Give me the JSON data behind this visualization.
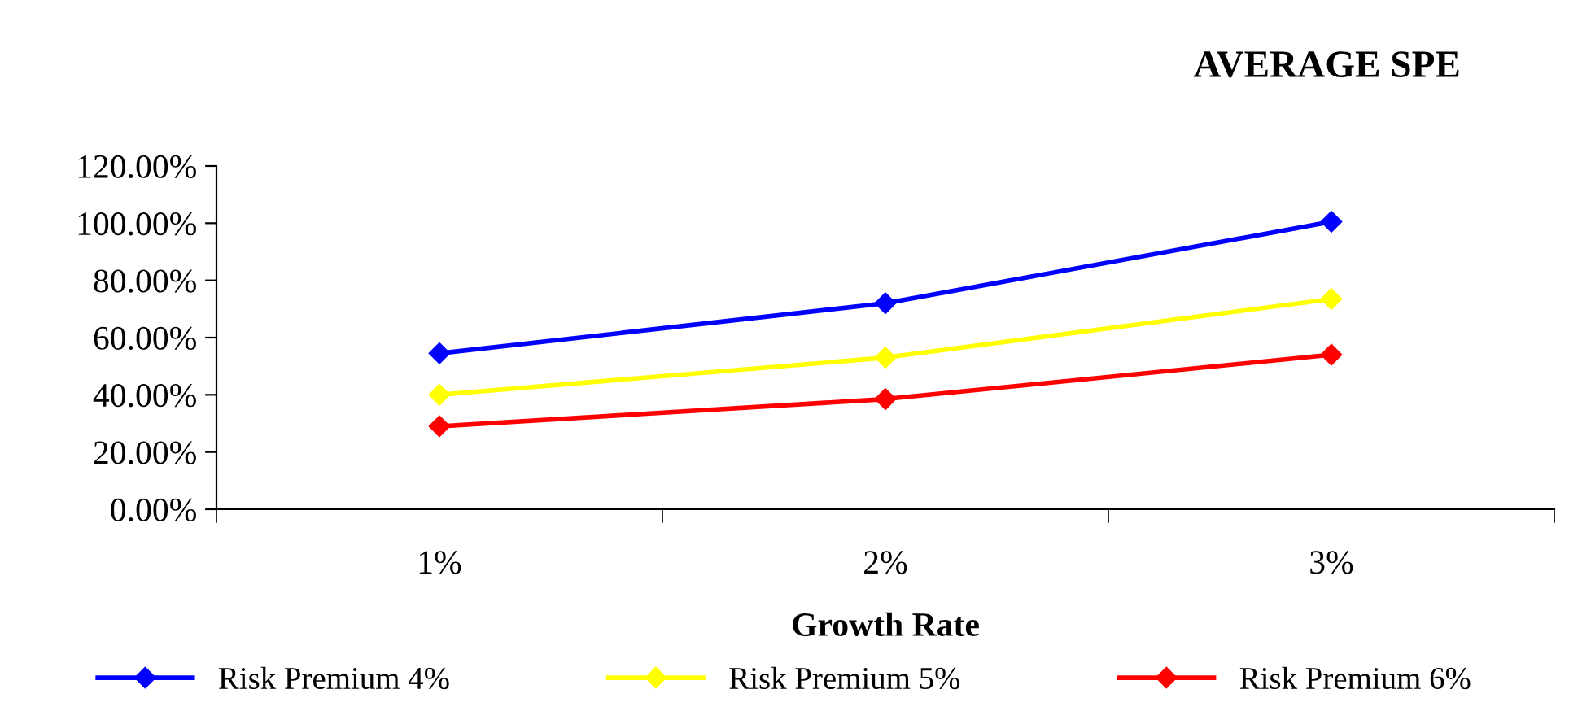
{
  "chart_data": {
    "type": "line",
    "title": "AVERAGE SPE",
    "xlabel": "Growth Rate",
    "categories": [
      "1%",
      "2%",
      "3%"
    ],
    "series": [
      {
        "name": "Risk Premium 4%",
        "color": "#0000ff",
        "values": [
          54.5,
          72,
          100.5
        ]
      },
      {
        "name": "Risk Premium 5%",
        "color": "#ffff00",
        "values": [
          40,
          53,
          73.5
        ]
      },
      {
        "name": "Risk Premium 6%",
        "color": "#ff0000",
        "values": [
          29,
          38.5,
          54
        ]
      }
    ],
    "ylim": [
      0,
      120
    ],
    "yticks": [
      {
        "value": 0,
        "label": "0.00%"
      },
      {
        "value": 20,
        "label": "20.00%"
      },
      {
        "value": 40,
        "label": "40.00%"
      },
      {
        "value": 60,
        "label": "60.00%"
      },
      {
        "value": 80,
        "label": "80.00%"
      },
      {
        "value": 100,
        "label": "100.00%"
      },
      {
        "value": 120,
        "label": "120.00%"
      }
    ],
    "grid": false,
    "legend": "bottom",
    "marker": "diamond",
    "line_style": "solid"
  }
}
